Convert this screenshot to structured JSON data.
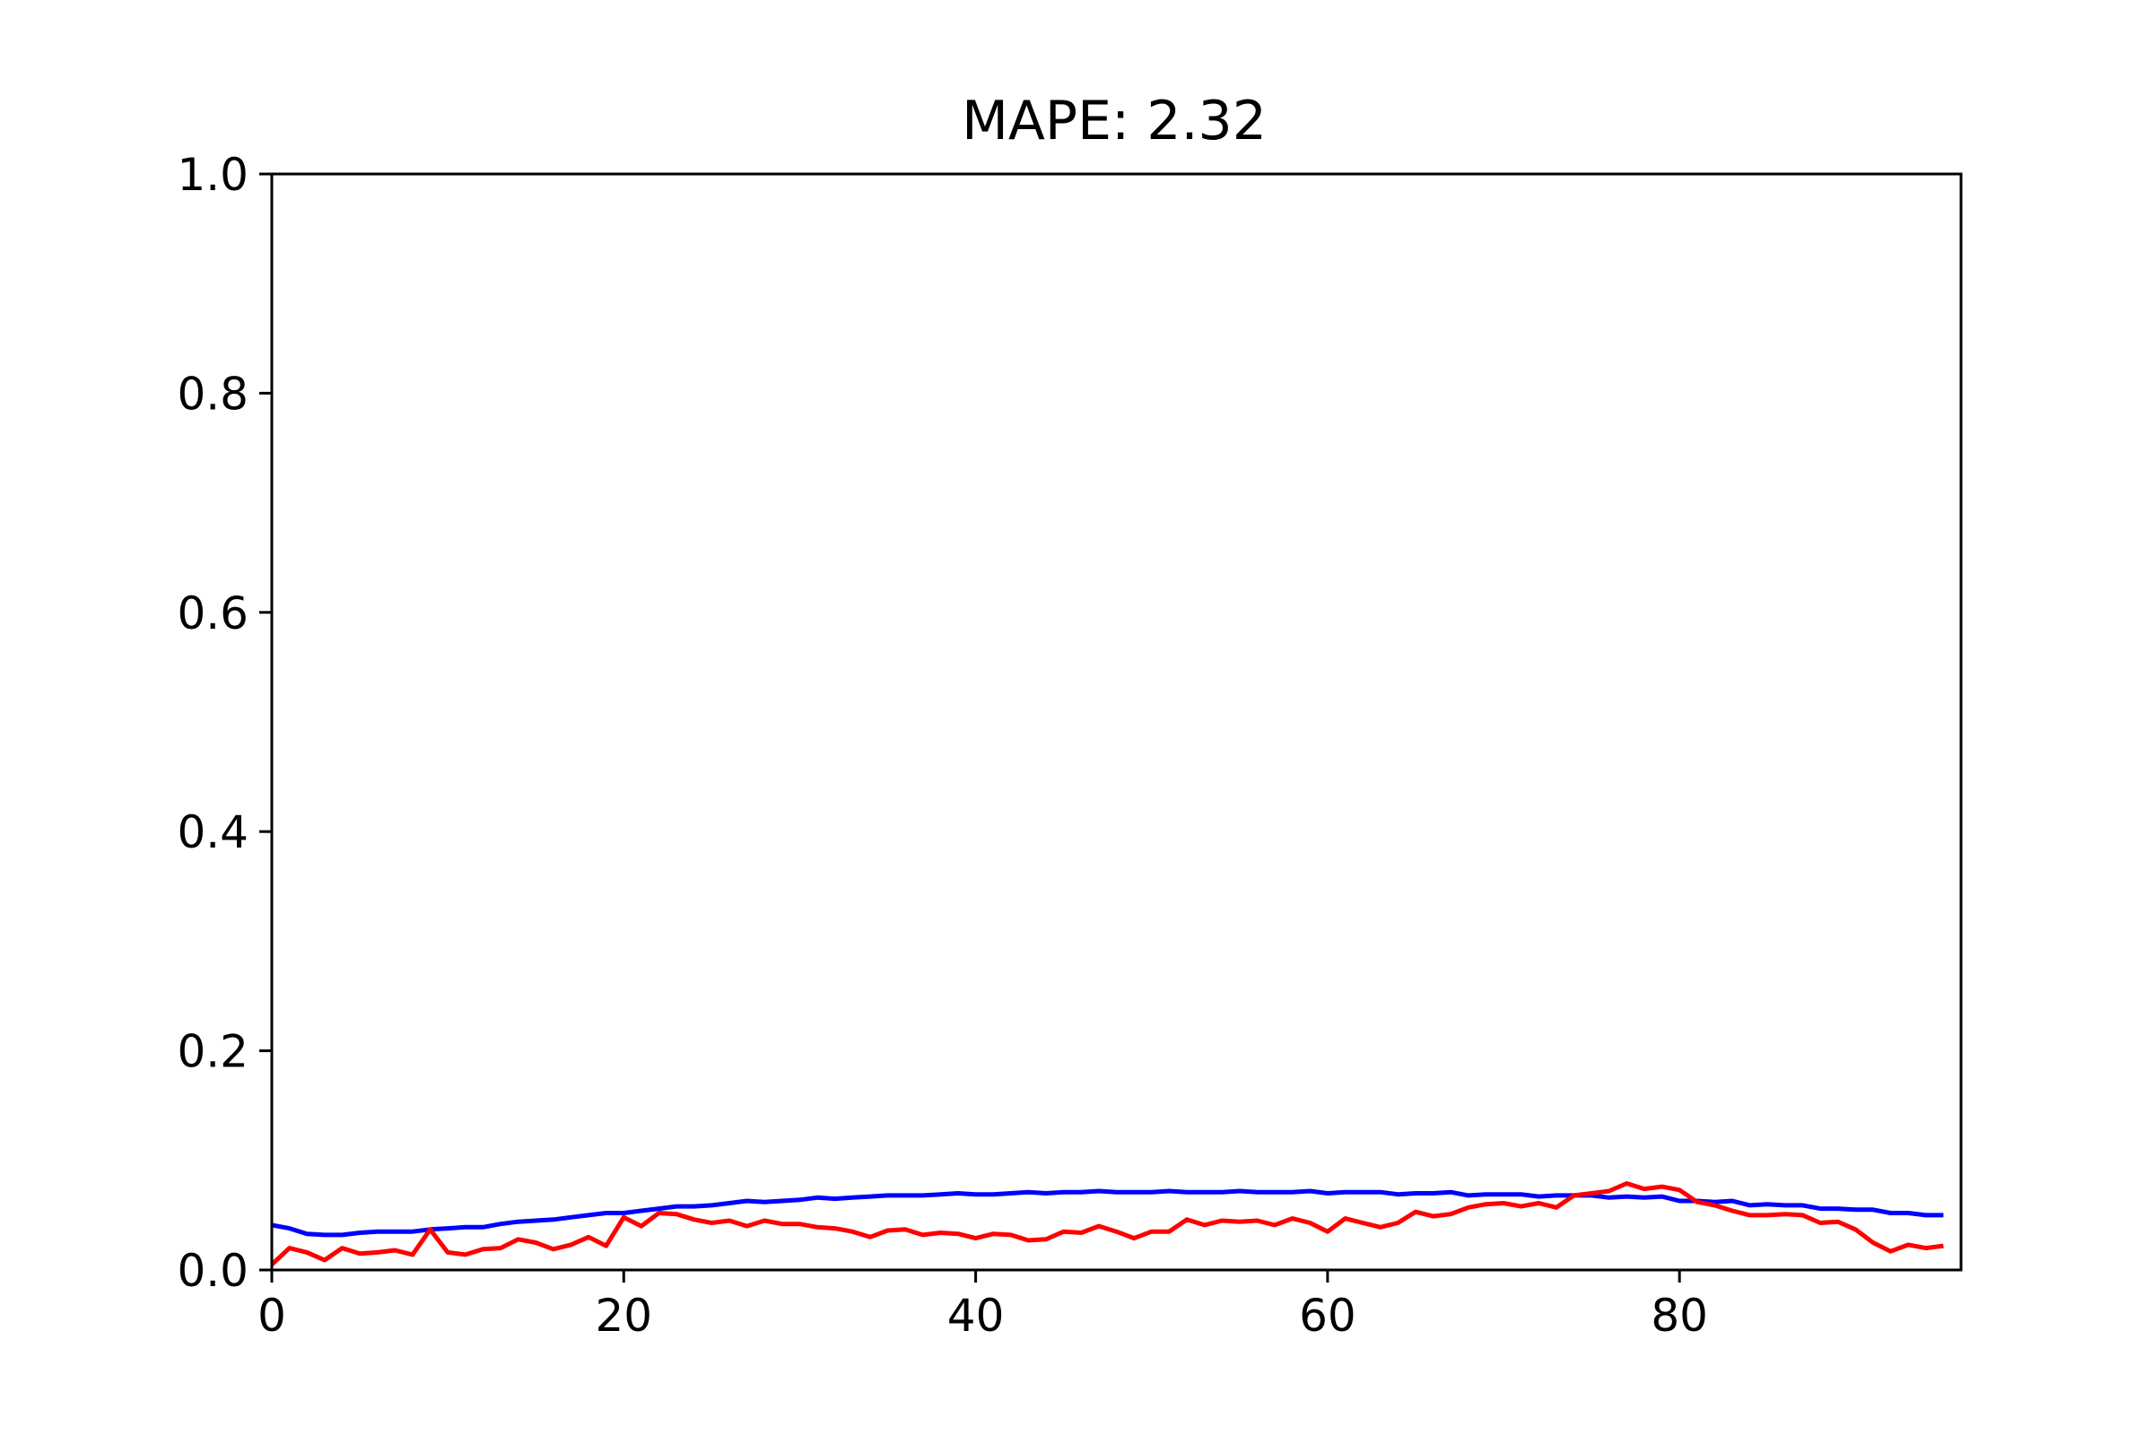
{
  "chart_data": {
    "type": "line",
    "title": "MAPE: 2.32",
    "xlabel": "",
    "ylabel": "",
    "xlim": [
      0,
      96
    ],
    "ylim": [
      0,
      1.0
    ],
    "x_ticks": [
      0,
      20,
      40,
      60,
      80
    ],
    "x_tick_labels": [
      "0",
      "20",
      "40",
      "60",
      "80"
    ],
    "y_ticks": [
      0.0,
      0.2,
      0.4,
      0.6,
      0.8,
      1.0
    ],
    "y_tick_labels": [
      "0.0",
      "0.2",
      "0.4",
      "0.6",
      "0.8",
      "1.0"
    ],
    "grid": false,
    "legend": "none",
    "series": [
      {
        "color": "#0000ff",
        "values": [
          0.041,
          0.038,
          0.033,
          0.032,
          0.032,
          0.034,
          0.035,
          0.035,
          0.035,
          0.037,
          0.038,
          0.039,
          0.039,
          0.042,
          0.044,
          0.045,
          0.046,
          0.048,
          0.05,
          0.052,
          0.052,
          0.054,
          0.056,
          0.058,
          0.058,
          0.059,
          0.061,
          0.063,
          0.062,
          0.063,
          0.064,
          0.066,
          0.065,
          0.066,
          0.067,
          0.068,
          0.068,
          0.068,
          0.069,
          0.07,
          0.069,
          0.069,
          0.07,
          0.071,
          0.07,
          0.071,
          0.071,
          0.072,
          0.071,
          0.071,
          0.071,
          0.072,
          0.071,
          0.071,
          0.071,
          0.072,
          0.071,
          0.071,
          0.071,
          0.072,
          0.07,
          0.071,
          0.071,
          0.071,
          0.069,
          0.07,
          0.07,
          0.071,
          0.068,
          0.069,
          0.069,
          0.069,
          0.067,
          0.068,
          0.068,
          0.068,
          0.066,
          0.067,
          0.066,
          0.067,
          0.063,
          0.063,
          0.062,
          0.063,
          0.059,
          0.06,
          0.059,
          0.059,
          0.056,
          0.056,
          0.055,
          0.055,
          0.052,
          0.052,
          0.05,
          0.05
        ]
      },
      {
        "color": "#ff0000",
        "values": [
          0.005,
          0.02,
          0.016,
          0.009,
          0.02,
          0.015,
          0.016,
          0.018,
          0.014,
          0.037,
          0.016,
          0.014,
          0.019,
          0.02,
          0.028,
          0.025,
          0.019,
          0.023,
          0.03,
          0.022,
          0.048,
          0.04,
          0.052,
          0.051,
          0.046,
          0.043,
          0.045,
          0.04,
          0.045,
          0.042,
          0.042,
          0.039,
          0.038,
          0.035,
          0.03,
          0.036,
          0.037,
          0.032,
          0.034,
          0.033,
          0.029,
          0.033,
          0.032,
          0.027,
          0.028,
          0.035,
          0.034,
          0.04,
          0.035,
          0.029,
          0.035,
          0.035,
          0.046,
          0.041,
          0.045,
          0.044,
          0.045,
          0.041,
          0.047,
          0.043,
          0.035,
          0.047,
          0.043,
          0.039,
          0.043,
          0.053,
          0.049,
          0.051,
          0.057,
          0.06,
          0.061,
          0.058,
          0.061,
          0.057,
          0.068,
          0.07,
          0.072,
          0.079,
          0.074,
          0.076,
          0.073,
          0.062,
          0.059,
          0.054,
          0.05,
          0.05,
          0.051,
          0.05,
          0.043,
          0.044,
          0.037,
          0.025,
          0.017,
          0.023,
          0.02,
          0.022
        ]
      }
    ]
  }
}
